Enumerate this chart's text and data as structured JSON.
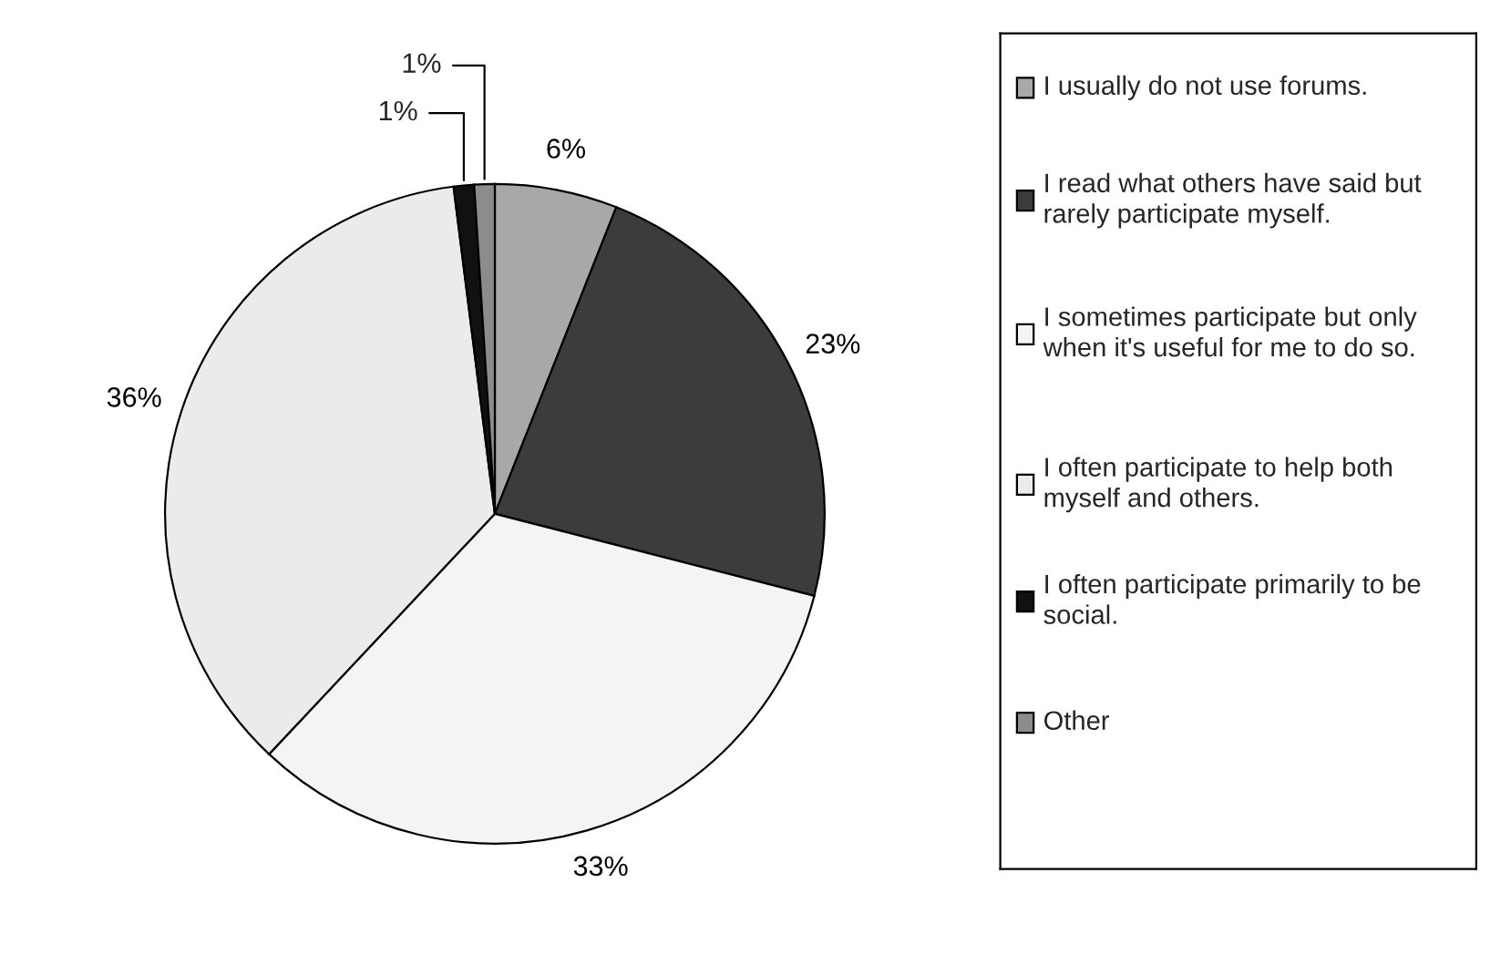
{
  "chart_data": {
    "type": "pie",
    "categories": [
      "I usually do not use forums.",
      "I read what others have said but rarely participate myself.",
      "I sometimes participate but only when it's useful for me to do so.",
      "I often participate to help both myself and others.",
      "I often participate primarily to be social.",
      "Other"
    ],
    "values": [
      6,
      23,
      33,
      36,
      1,
      1
    ],
    "value_labels": [
      "6%",
      "23%",
      "33%",
      "36%",
      "1%",
      "1%"
    ],
    "colors": [
      "#a8a8a8",
      "#3c3c3c",
      "#f4f4f4",
      "#ebebeb",
      "#111111",
      "#8c8c8c"
    ],
    "legend": "right"
  }
}
